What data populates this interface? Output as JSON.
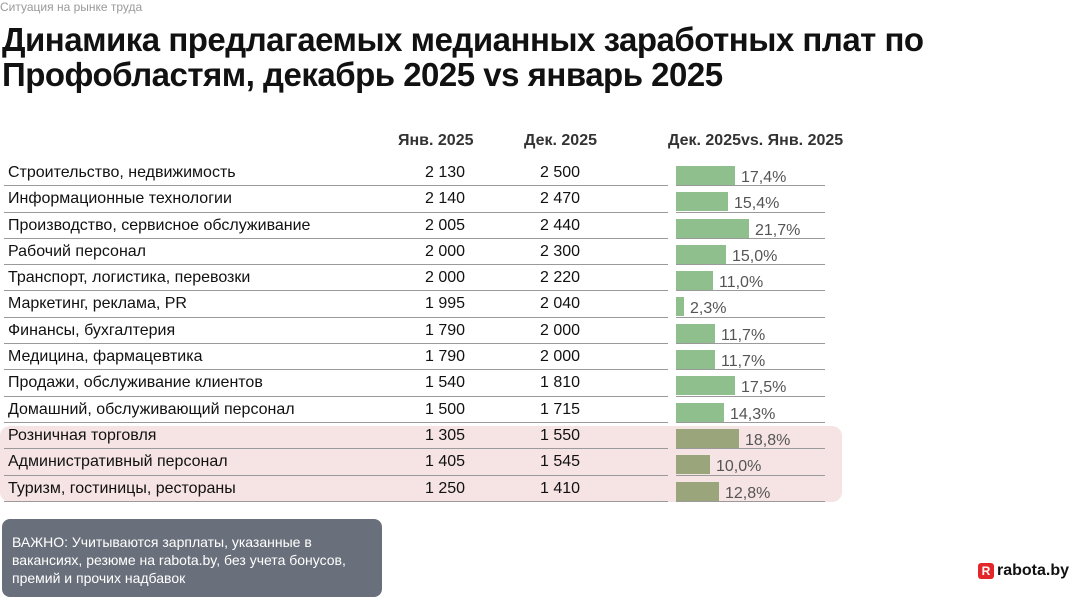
{
  "kicker": "Ситуация на рынке труда",
  "title": {
    "line1": "Динамика предлагаемых медианных заработных плат по",
    "line2": "Профобластям, декабрь 2025 vs январь 2025"
  },
  "columns": {
    "jan": "Янв. 2025",
    "dec": "Дек. 2025",
    "change": "Дек. 2025vs. Янв. 2025"
  },
  "note": "ВАЖНО: Учитываются зарплаты, указанные в вакансиях, резюме на rabota.by, без учета бонусов, премий и прочих надбавок",
  "brand": {
    "mark": "R",
    "name": "rabota.by"
  },
  "colors": {
    "bar": "#8fbf8d",
    "bar_highlight": "#9aa57b",
    "highlight_bg": "#f6e3e3"
  },
  "chart_data": {
    "type": "table",
    "title": "Динамика предлагаемых медианных заработных плат по Профобластям, декабрь 2025 vs январь 2025",
    "columns": [
      "Янв. 2025",
      "Дек. 2025",
      "Дек. 2025vs. Янв. 2025"
    ],
    "bar_max": 21.7,
    "rows": [
      {
        "category": "Строительство, недвижимость",
        "jan": "2 130",
        "dec": "2 500",
        "change": 17.4,
        "change_label": "17,4%",
        "highlight": false
      },
      {
        "category": "Информационные технологии",
        "jan": "2 140",
        "dec": "2 470",
        "change": 15.4,
        "change_label": "15,4%",
        "highlight": false
      },
      {
        "category": "Производство, сервисное обслуживание",
        "jan": "2 005",
        "dec": "2 440",
        "change": 21.7,
        "change_label": "21,7%",
        "highlight": false
      },
      {
        "category": "Рабочий персонал",
        "jan": "2 000",
        "dec": "2 300",
        "change": 15.0,
        "change_label": "15,0%",
        "highlight": false
      },
      {
        "category": "Транспорт, логистика, перевозки",
        "jan": "2 000",
        "dec": "2 220",
        "change": 11.0,
        "change_label": "11,0%",
        "highlight": false
      },
      {
        "category": "Маркетинг, реклама, PR",
        "jan": "1 995",
        "dec": "2 040",
        "change": 2.3,
        "change_label": "2,3%",
        "highlight": false
      },
      {
        "category": "Финансы, бухгалтерия",
        "jan": "1 790",
        "dec": "2 000",
        "change": 11.7,
        "change_label": "11,7%",
        "highlight": false
      },
      {
        "category": "Медицина, фармацевтика",
        "jan": "1 790",
        "dec": "2 000",
        "change": 11.7,
        "change_label": "11,7%",
        "highlight": false
      },
      {
        "category": "Продажи, обслуживание клиентов",
        "jan": "1 540",
        "dec": "1 810",
        "change": 17.5,
        "change_label": "17,5%",
        "highlight": false
      },
      {
        "category": "Домашний, обслуживающий персонал",
        "jan": "1 500",
        "dec": "1 715",
        "change": 14.3,
        "change_label": "14,3%",
        "highlight": false
      },
      {
        "category": "Розничная торговля",
        "jan": "1 305",
        "dec": "1 550",
        "change": 18.8,
        "change_label": "18,8%",
        "highlight": true
      },
      {
        "category": "Административный персонал",
        "jan": "1 405",
        "dec": "1 545",
        "change": 10.0,
        "change_label": "10,0%",
        "highlight": true
      },
      {
        "category": "Туризм, гостиницы, рестораны",
        "jan": "1 250",
        "dec": "1 410",
        "change": 12.8,
        "change_label": "12,8%",
        "highlight": true
      }
    ]
  }
}
